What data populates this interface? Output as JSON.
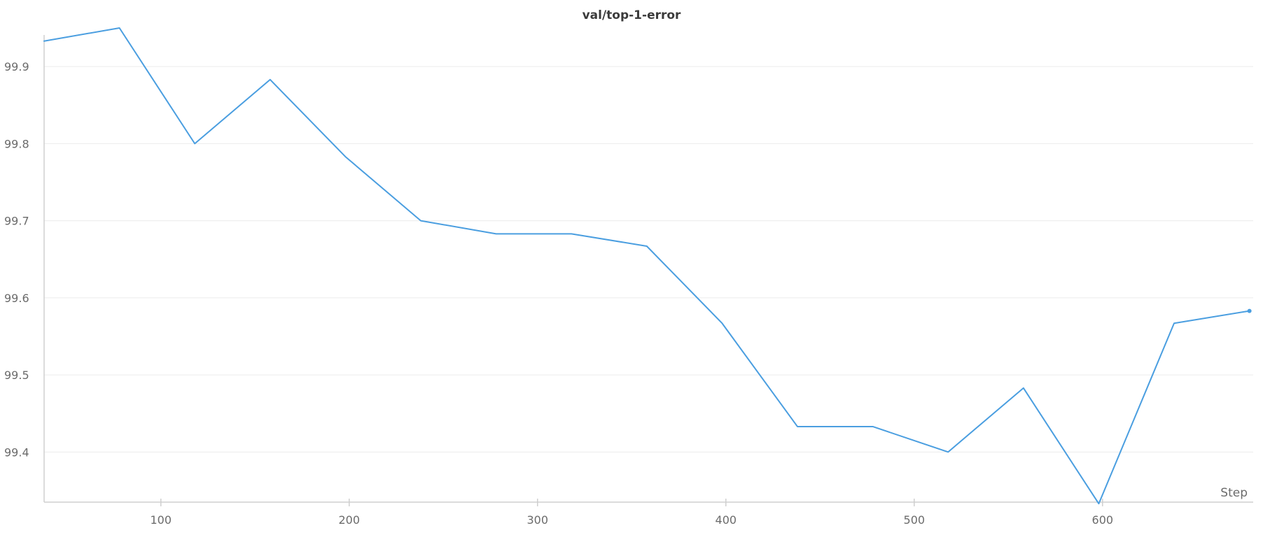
{
  "chart_data": {
    "type": "line",
    "title": "val/top-1-error",
    "xlabel": "Step",
    "ylabel": "",
    "xlim": [
      38,
      680
    ],
    "ylim": [
      99.335,
      99.95
    ],
    "x_ticks": [
      100,
      200,
      300,
      400,
      500,
      600
    ],
    "y_ticks": [
      99.4,
      99.5,
      99.6,
      99.7,
      99.8,
      99.9
    ],
    "x_tick_labels": [
      "100",
      "200",
      "300",
      "400",
      "500",
      "600"
    ],
    "y_tick_labels": [
      "99.4",
      "99.5",
      "99.6",
      "99.7",
      "99.8",
      "99.9"
    ],
    "grid": "horizontal",
    "legend": "none",
    "series": [
      {
        "color": "#4a9ee0",
        "x": [
          38,
          78,
          118,
          158,
          198,
          238,
          278,
          318,
          358,
          398,
          438,
          478,
          518,
          558,
          598,
          638,
          678
        ],
        "y": [
          99.933,
          99.95,
          99.8,
          99.883,
          99.783,
          99.7,
          99.683,
          99.683,
          99.667,
          99.567,
          99.433,
          99.433,
          99.4,
          99.483,
          99.333,
          99.567,
          99.583
        ]
      }
    ],
    "colors": {
      "line": "#4a9ee0",
      "grid": "#ececec",
      "axis": "#cfcfcf",
      "tick_text": "#6b6b6b",
      "title_text": "#3b3b3b"
    }
  }
}
